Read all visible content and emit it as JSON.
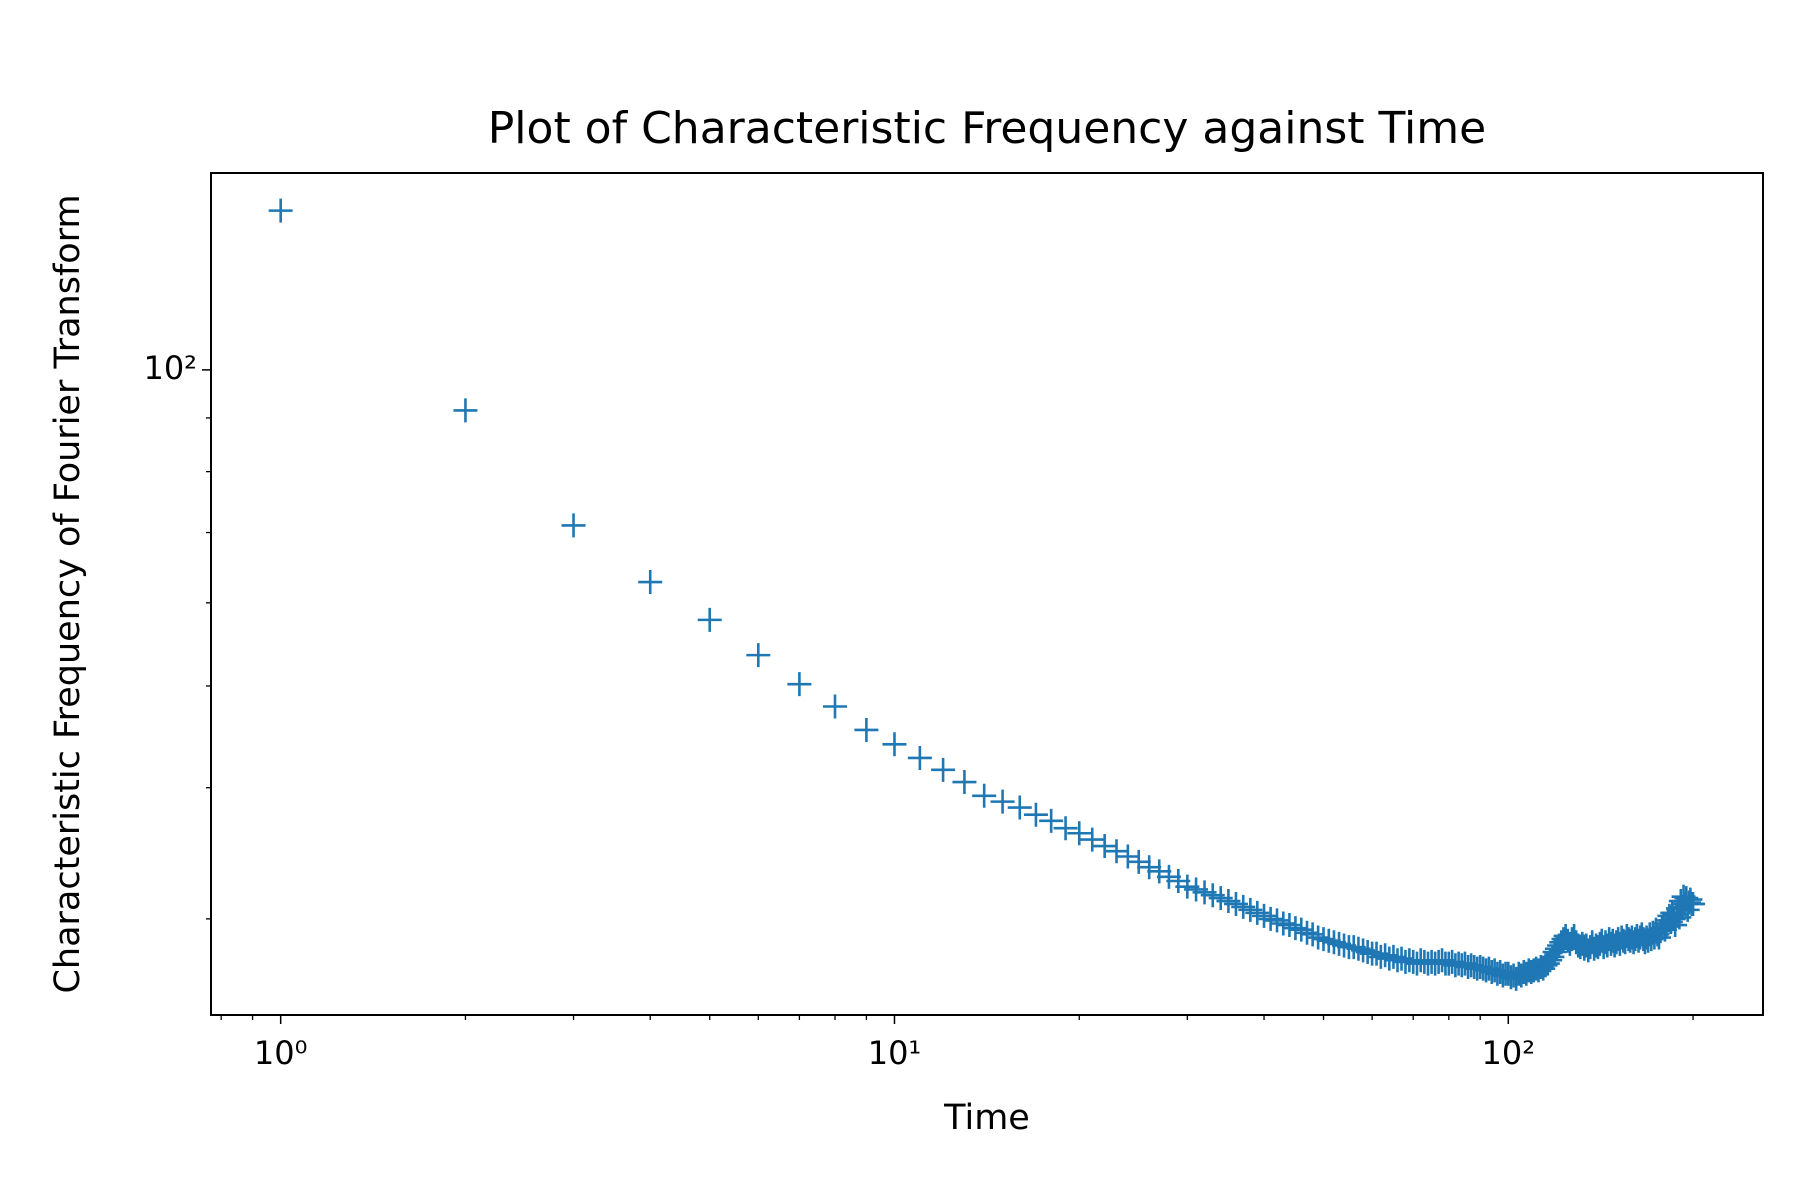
{
  "chart_data": {
    "type": "scatter",
    "title": "Plot of Characteristic Frequency against Time",
    "xlabel": "Time",
    "ylabel": "Characteristic Frequency of Fourier Transform",
    "xscale": "log",
    "yscale": "log",
    "marker": "+",
    "color": "#1f77b4",
    "xlim": [
      0.77,
      260
    ],
    "ylim": [
      24.3,
      154
    ],
    "xticks": [
      {
        "value": 1,
        "label": "10⁰"
      },
      {
        "value": 10,
        "label": "10¹"
      },
      {
        "value": 100,
        "label": "10²"
      }
    ],
    "yticks": [
      {
        "value": 100,
        "label": "10²"
      }
    ],
    "x": [
      1,
      2,
      3,
      4,
      5,
      6,
      7,
      8,
      9,
      10,
      11,
      12,
      13,
      14,
      15,
      16,
      17,
      18,
      19,
      20,
      21,
      22,
      23,
      24,
      25,
      26,
      27,
      28,
      29,
      30,
      31,
      32,
      33,
      34,
      35,
      36,
      37,
      38,
      39,
      40,
      41,
      42,
      43,
      44,
      45,
      46,
      47,
      48,
      49,
      50,
      51,
      52,
      53,
      54,
      55,
      56,
      57,
      58,
      59,
      60,
      61,
      62,
      63,
      64,
      65,
      66,
      67,
      68,
      69,
      70,
      71,
      72,
      73,
      74,
      75,
      76,
      77,
      78,
      79,
      80,
      81,
      82,
      83,
      84,
      85,
      86,
      87,
      88,
      89,
      90,
      91,
      92,
      93,
      94,
      95,
      96,
      97,
      98,
      99,
      100,
      101,
      102,
      103,
      104,
      105,
      106,
      107,
      108,
      109,
      110,
      111,
      112,
      113,
      114,
      115,
      116,
      117,
      118,
      119,
      120,
      121,
      122,
      123,
      124,
      125,
      126,
      127,
      128,
      129,
      130,
      131,
      132,
      133,
      134,
      135,
      136,
      137,
      138,
      139,
      140,
      141,
      142,
      143,
      144,
      145,
      146,
      147,
      148,
      149,
      150,
      151,
      152,
      153,
      154,
      155,
      156,
      157,
      158,
      159,
      160,
      161,
      162,
      163,
      164,
      165,
      166,
      167,
      168,
      169,
      170,
      171,
      172,
      173,
      174,
      175,
      176,
      177,
      178,
      179,
      180,
      181,
      182,
      183,
      184,
      185,
      186,
      187,
      188,
      189,
      190,
      191,
      192,
      193,
      194,
      195,
      196,
      197,
      198,
      199,
      200
    ],
    "values": [
      141.8,
      91.5,
      71.1,
      62.8,
      57.8,
      53.5,
      50.2,
      47.8,
      45.4,
      44.0,
      42.7,
      41.6,
      40.5,
      39.3,
      38.8,
      38.3,
      37.7,
      37.2,
      36.6,
      36.2,
      35.7,
      35.2,
      34.8,
      34.4,
      34.0,
      33.6,
      33.3,
      32.9,
      32.6,
      32.2,
      32.0,
      31.8,
      31.6,
      31.4,
      31.2,
      31.0,
      30.8,
      30.6,
      30.4,
      30.2,
      30.0,
      29.9,
      29.7,
      29.6,
      29.4,
      29.3,
      29.1,
      29.0,
      28.8,
      28.7,
      28.6,
      28.5,
      28.4,
      28.3,
      28.2,
      28.2,
      28.1,
      28.0,
      27.9,
      27.8,
      27.8,
      27.6,
      27.7,
      27.5,
      27.6,
      27.4,
      27.5,
      27.3,
      27.4,
      27.3,
      27.2,
      27.4,
      27.3,
      27.2,
      27.3,
      27.2,
      27.3,
      27.4,
      27.2,
      27.2,
      27.3,
      27.1,
      27.2,
      27.1,
      27.2,
      27.0,
      27.1,
      27.0,
      26.9,
      27.0,
      26.9,
      26.8,
      26.9,
      26.7,
      26.8,
      26.6,
      26.7,
      26.5,
      26.6,
      26.6,
      26.4,
      26.5,
      26.3,
      26.6,
      26.5,
      26.7,
      26.6,
      26.8,
      26.7,
      26.8,
      26.9,
      26.8,
      27.0,
      26.9,
      27.1,
      27.2,
      27.4,
      27.6,
      27.9,
      28.1,
      28.3,
      28.5,
      28.7,
      28.9,
      28.6,
      28.4,
      28.7,
      28.9,
      28.5,
      28.3,
      28.2,
      28.4,
      28.1,
      28.3,
      28.0,
      28.2,
      28.5,
      28.1,
      28.3,
      28.2,
      28.4,
      28.6,
      28.2,
      28.5,
      28.3,
      28.7,
      28.4,
      28.6,
      28.3,
      28.5,
      28.7,
      28.4,
      28.8,
      28.6,
      28.5,
      28.9,
      28.7,
      28.6,
      28.8,
      28.5,
      28.7,
      28.9,
      28.6,
      28.8,
      29.0,
      28.7,
      28.5,
      28.8,
      28.6,
      29.0,
      28.7,
      29.1,
      28.8,
      29.3,
      29.0,
      28.8,
      29.2,
      29.4,
      29.7,
      29.3,
      29.5,
      29.9,
      30.2,
      29.8,
      30.4,
      30.0,
      29.6,
      30.3,
      30.7,
      30.1,
      31.2,
      30.8,
      31.5,
      31.0,
      31.4,
      30.6,
      31.1,
      31.3,
      31.0,
      31.0
    ]
  }
}
